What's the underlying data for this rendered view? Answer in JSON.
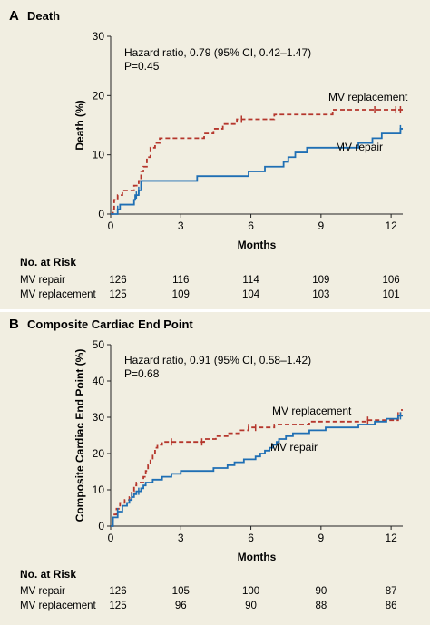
{
  "colors": {
    "repair": "#1f6fb4",
    "replacement": "#b5362c",
    "background": "#f1eee1"
  },
  "chart_data": [
    {
      "type": "line",
      "panel_letter": "A",
      "title": "Death",
      "xlabel": "Months",
      "ylabel": "Death (%)",
      "xlim": [
        0,
        12.5
      ],
      "ylim": [
        0,
        30
      ],
      "xticks": [
        "0",
        "3",
        "6",
        "9",
        "12"
      ],
      "yticks": [
        "0",
        "10",
        "20",
        "30"
      ],
      "annotation": [
        "Hazard ratio, 0.79 (95% CI, 0.42–1.47)",
        "P=0.45"
      ],
      "curve_labels": {
        "replacement": "MV replacement",
        "repair": "MV repair"
      },
      "series": [
        {
          "name": "MV replacement",
          "style": "dashed",
          "color_key": "replacement",
          "points": [
            [
              0,
              0
            ],
            [
              0.1,
              0.8
            ],
            [
              0.15,
              2.4
            ],
            [
              0.3,
              3.2
            ],
            [
              0.5,
              4.0
            ],
            [
              1.0,
              4.8
            ],
            [
              1.2,
              5.6
            ],
            [
              1.3,
              7.2
            ],
            [
              1.4,
              8.0
            ],
            [
              1.55,
              9.6
            ],
            [
              1.7,
              11.2
            ],
            [
              1.9,
              12.0
            ],
            [
              2.1,
              12.8
            ],
            [
              4.0,
              13.6
            ],
            [
              4.4,
              14.4
            ],
            [
              4.8,
              15.2
            ],
            [
              5.4,
              16.0
            ],
            [
              7.0,
              16.8
            ],
            [
              9.5,
              17.6
            ],
            [
              12.5,
              17.6
            ]
          ],
          "censor": [
            5.6,
            11.3,
            12.2,
            12.4
          ]
        },
        {
          "name": "MV repair",
          "style": "solid",
          "color_key": "repair",
          "points": [
            [
              0,
              0
            ],
            [
              0.3,
              0.8
            ],
            [
              0.4,
              1.6
            ],
            [
              1.0,
              2.4
            ],
            [
              1.05,
              3.2
            ],
            [
              1.2,
              4.0
            ],
            [
              1.3,
              5.6
            ],
            [
              3.7,
              6.4
            ],
            [
              5.9,
              7.2
            ],
            [
              6.6,
              8.0
            ],
            [
              7.4,
              8.8
            ],
            [
              7.6,
              9.6
            ],
            [
              7.9,
              10.4
            ],
            [
              8.4,
              11.2
            ],
            [
              10.6,
              12.0
            ],
            [
              11.2,
              12.8
            ],
            [
              11.6,
              13.6
            ],
            [
              12.4,
              14.4
            ],
            [
              12.5,
              14.4
            ]
          ],
          "censor": [
            0.3,
            1.1,
            1.2,
            12.4
          ]
        }
      ],
      "risk_table": {
        "heading": "No. at Risk",
        "rows": [
          {
            "label": "MV repair",
            "values": [
              "126",
              "116",
              "114",
              "109",
              "106"
            ]
          },
          {
            "label": "MV replacement",
            "values": [
              "125",
              "109",
              "104",
              "103",
              "101"
            ]
          }
        ]
      }
    },
    {
      "type": "line",
      "panel_letter": "B",
      "title": "Composite Cardiac End Point",
      "xlabel": "Months",
      "ylabel": "Composite Cardiac End Point (%)",
      "xlim": [
        0,
        12.5
      ],
      "ylim": [
        0,
        50
      ],
      "xticks": [
        "0",
        "3",
        "6",
        "9",
        "12"
      ],
      "yticks": [
        "0",
        "10",
        "20",
        "30",
        "40",
        "50"
      ],
      "annotation": [
        "Hazard ratio, 0.91 (95% CI, 0.58–1.42)",
        "P=0.68"
      ],
      "curve_labels": {
        "replacement": "MV replacement",
        "repair": "MV repair"
      },
      "series": [
        {
          "name": "MV replacement",
          "style": "dashed",
          "color_key": "replacement",
          "points": [
            [
              0,
              0
            ],
            [
              0.1,
              3.2
            ],
            [
              0.25,
              4.8
            ],
            [
              0.4,
              6.4
            ],
            [
              0.6,
              7.2
            ],
            [
              0.8,
              8.0
            ],
            [
              0.9,
              9.6
            ],
            [
              1.0,
              11.2
            ],
            [
              1.1,
              12.0
            ],
            [
              1.4,
              13.6
            ],
            [
              1.5,
              15.2
            ],
            [
              1.6,
              16.8
            ],
            [
              1.7,
              18.4
            ],
            [
              1.8,
              20.0
            ],
            [
              1.9,
              21.6
            ],
            [
              2.0,
              22.4
            ],
            [
              2.2,
              23.2
            ],
            [
              4.0,
              24.0
            ],
            [
              4.5,
              24.8
            ],
            [
              5.0,
              25.6
            ],
            [
              5.5,
              26.4
            ],
            [
              5.9,
              27.2
            ],
            [
              7.0,
              28.0
            ],
            [
              8.5,
              28.8
            ],
            [
              11.0,
              29.2
            ],
            [
              12.3,
              30.4
            ],
            [
              12.4,
              32.0
            ],
            [
              12.5,
              32.0
            ]
          ],
          "censor": [
            2.6,
            3.9,
            5.9,
            6.2,
            11.0,
            12.3
          ]
        },
        {
          "name": "MV repair",
          "style": "solid",
          "color_key": "repair",
          "points": [
            [
              0,
              0
            ],
            [
              0.1,
              2.4
            ],
            [
              0.3,
              4.0
            ],
            [
              0.5,
              5.6
            ],
            [
              0.7,
              6.4
            ],
            [
              0.8,
              7.2
            ],
            [
              0.9,
              8.0
            ],
            [
              1.0,
              8.8
            ],
            [
              1.1,
              9.6
            ],
            [
              1.3,
              10.4
            ],
            [
              1.4,
              11.2
            ],
            [
              1.5,
              12.0
            ],
            [
              1.8,
              12.8
            ],
            [
              2.2,
              13.6
            ],
            [
              2.6,
              14.4
            ],
            [
              3.0,
              15.2
            ],
            [
              4.4,
              16.0
            ],
            [
              5.0,
              16.8
            ],
            [
              5.3,
              17.6
            ],
            [
              5.7,
              18.4
            ],
            [
              6.2,
              19.2
            ],
            [
              6.4,
              20.0
            ],
            [
              6.6,
              20.8
            ],
            [
              6.8,
              21.6
            ],
            [
              6.95,
              22.4
            ],
            [
              7.1,
              23.2
            ],
            [
              7.2,
              24.0
            ],
            [
              7.5,
              24.8
            ],
            [
              7.8,
              25.6
            ],
            [
              8.5,
              26.4
            ],
            [
              9.2,
              27.2
            ],
            [
              10.6,
              28.0
            ],
            [
              11.3,
              28.8
            ],
            [
              11.8,
              29.6
            ],
            [
              12.3,
              30.4
            ],
            [
              12.5,
              30.4
            ]
          ],
          "censor": [
            0.3,
            0.9,
            1.2,
            12.4
          ]
        }
      ],
      "risk_table": {
        "heading": "No. at Risk",
        "rows": [
          {
            "label": "MV repair",
            "values": [
              "126",
              "105",
              "100",
              "90",
              "87"
            ]
          },
          {
            "label": "MV replacement",
            "values": [
              "125",
              "96",
              "90",
              "88",
              "86"
            ]
          }
        ]
      }
    }
  ]
}
